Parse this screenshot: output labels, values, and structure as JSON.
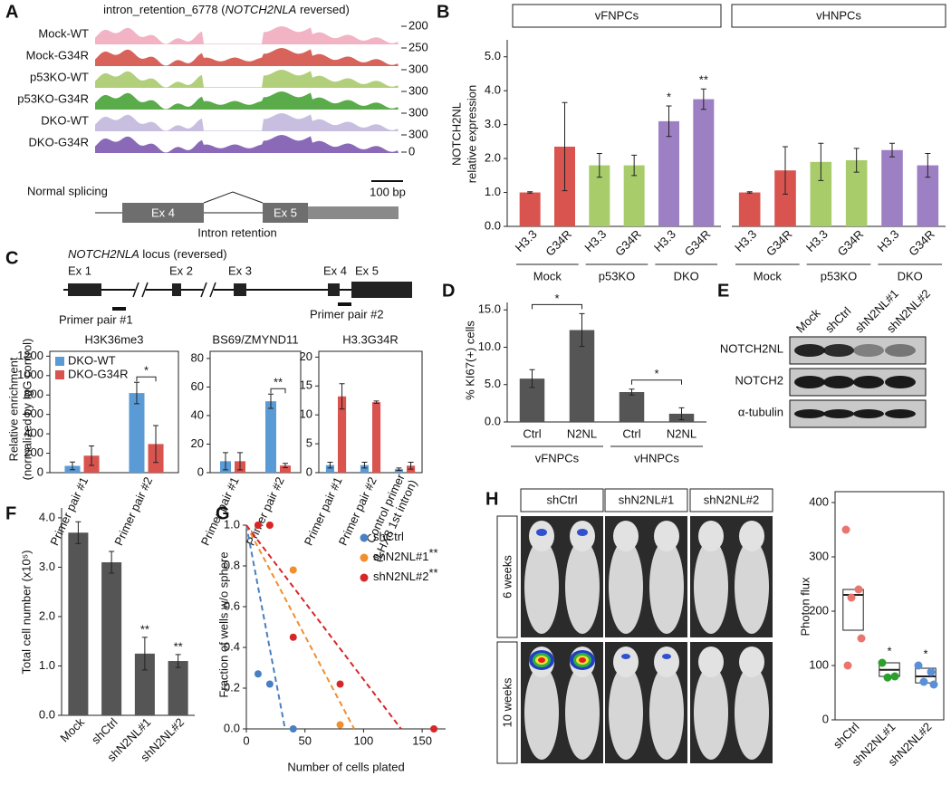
{
  "panel_labels": [
    "A",
    "B",
    "C",
    "D",
    "E",
    "F",
    "G",
    "H"
  ],
  "panel_a": {
    "title": [
      "intron_retention_6778 (",
      "NOTCH2NLA",
      " reversed)"
    ],
    "tracks": [
      "Mock-WT",
      "Mock-G34R",
      "p53KO-WT",
      "p53KO-G34R",
      "DKO-WT",
      "DKO-G34R"
    ],
    "track_colors": [
      "#f2b3c4",
      "#d8635b",
      "#b2cf7c",
      "#5aab4a",
      "#c8bfe0",
      "#8a69b8"
    ],
    "scales": [
      "200",
      "250",
      "300",
      "300",
      "300",
      "300",
      "0"
    ],
    "normal_splicing": "Normal splicing",
    "scale_bar": "100 bp",
    "exons": [
      "Ex 4",
      "Ex 5"
    ],
    "intron_retention": "Intron retention"
  },
  "panel_c_locus": {
    "title": [
      "NOTCH2NLA",
      " locus (reversed)"
    ],
    "exons": [
      "Ex 1",
      "Ex 2",
      "Ex 3",
      "Ex 4",
      "Ex 5"
    ],
    "primers": [
      "Primer pair #1",
      "Primer pair #2"
    ]
  },
  "panel_e": {
    "lanes": [
      "Mock",
      "shCtrl",
      "shN2NL#1",
      "shN2NL#2"
    ],
    "rows": [
      "NOTCH2NL",
      "NOTCH2",
      "α-tubulin"
    ]
  },
  "panel_h_images": {
    "columns": [
      "shCtrl",
      "shN2NL#1",
      "shN2NL#2"
    ],
    "rows": [
      "6 weeks",
      "10 weeks"
    ]
  },
  "chart_data": [
    {
      "type": "bar",
      "y_label": [
        "NOTCH2NL",
        "relative expression"
      ],
      "categories": [
        "H3.3",
        "G34R",
        "H3.3",
        "G34R",
        "H3.3",
        "G34R"
      ],
      "groups": [
        "Mock",
        "p53KO",
        "DKO"
      ],
      "colors": [
        "#d9544f",
        "#d9544f",
        "#a9cc6a",
        "#a9cc6a",
        "#9d80c3",
        "#9d80c3"
      ],
      "panels": [
        {
          "title": "vFNPCs",
          "values": [
            1.0,
            2.35,
            1.8,
            1.8,
            3.1,
            3.75
          ],
          "errors": [
            0.02,
            1.3,
            0.35,
            0.3,
            0.45,
            0.3
          ],
          "value_annotations": [
            null,
            null,
            null,
            null,
            "*",
            "**"
          ]
        },
        {
          "title": "vHNPCs",
          "values": [
            1.0,
            1.65,
            1.9,
            1.95,
            2.25,
            1.8
          ],
          "errors": [
            0.02,
            0.7,
            0.55,
            0.35,
            0.2,
            0.35
          ]
        }
      ],
      "ylim": [
        0,
        5.5
      ],
      "yticks": [
        {
          "value": 0,
          "label": "0.0"
        },
        {
          "value": 1,
          "label": "1.0"
        },
        {
          "value": 2,
          "label": "2.0"
        },
        {
          "value": 3,
          "label": "3.0"
        },
        {
          "value": 4,
          "label": "4.0"
        },
        {
          "value": 5,
          "label": "5.0"
        }
      ]
    },
    {
      "type": "bar",
      "title": "H3K36me3",
      "y_label": [
        "Relative enrichment",
        "(normalized by IgG control)"
      ],
      "categories": [
        "Primer pair #1",
        "Primer pair #2"
      ],
      "series": [
        {
          "name": "DKO-WT",
          "color": "#5b9bd5",
          "values": [
            70,
            820
          ],
          "errors": [
            40,
            110
          ]
        },
        {
          "name": "DKO-G34R",
          "color": "#d9544f",
          "values": [
            175,
            295
          ],
          "errors": [
            100,
            190
          ]
        }
      ],
      "ylim": [
        0,
        1250
      ],
      "yticks": [
        0,
        200,
        400,
        600,
        800,
        1000,
        1200
      ],
      "category_annotations": [
        null,
        "*"
      ]
    },
    {
      "type": "bar",
      "title": "BS69/ZMYND11",
      "categories": [
        "Primer pair #1",
        "Primer pair #2"
      ],
      "series": [
        {
          "color": "#5b9bd5",
          "values": [
            8,
            50
          ],
          "errors": [
            6,
            5
          ]
        },
        {
          "color": "#d9544f",
          "values": [
            8,
            5
          ],
          "errors": [
            6,
            1.5
          ]
        }
      ],
      "ylim": [
        0,
        85
      ],
      "yticks": [
        0,
        20,
        40,
        60,
        80
      ],
      "category_annotations": [
        null,
        "**"
      ]
    },
    {
      "type": "bar",
      "title": "H3.3G34R",
      "categories": [
        "Primer pair #1",
        "Primer pair #2",
        [
          "Control primer",
          "(LHX8 1st intron)"
        ]
      ],
      "series": [
        {
          "color": "#5b9bd5",
          "values": [
            1.3,
            1.3,
            0.6
          ],
          "errors": [
            0.5,
            0.5,
            0.2
          ]
        },
        {
          "color": "#d9544f",
          "values": [
            13.2,
            12.2,
            1.2
          ],
          "errors": [
            2.2,
            0.2,
            0.6
          ]
        }
      ],
      "ylim": [
        0,
        21
      ],
      "yticks": [
        0,
        5,
        10,
        15,
        20
      ]
    },
    {
      "type": "bar",
      "y_label": "% KI67(+) cells",
      "categories": [
        "Ctrl",
        "N2NL",
        "Ctrl",
        "N2NL"
      ],
      "groups": [
        "vFNPCs",
        "vHNPCs"
      ],
      "values": [
        5.8,
        12.3,
        4.0,
        1.1
      ],
      "errors": [
        1.2,
        2.2,
        0.4,
        0.8
      ],
      "color": "#555555",
      "group_annotations": [
        "*",
        "*"
      ],
      "ylim": [
        0,
        16
      ],
      "yticks": [
        {
          "value": 0,
          "label": "0.0"
        },
        {
          "value": 5,
          "label": "5.0"
        },
        {
          "value": 10,
          "label": "10.0"
        },
        {
          "value": 15,
          "label": "15.0"
        }
      ]
    },
    {
      "type": "bar",
      "y_label": "Total cell number (x10⁵)",
      "categories": [
        "Mock",
        "shCtrl",
        "shN2NL#1",
        "shN2NL#2"
      ],
      "values": [
        3.7,
        3.1,
        1.25,
        1.1
      ],
      "errors": [
        0.22,
        0.22,
        0.33,
        0.13
      ],
      "value_annotations": [
        null,
        null,
        "**",
        "**"
      ],
      "color": "#555555",
      "ylim": [
        0,
        4.2
      ],
      "yticks": [
        {
          "value": 0,
          "label": "0.0"
        },
        {
          "value": 1,
          "label": "1.0"
        },
        {
          "value": 2,
          "label": "2.0"
        },
        {
          "value": 3,
          "label": "3.0"
        },
        {
          "value": 4,
          "label": "4.0"
        }
      ]
    },
    {
      "type": "scatter",
      "x_label": "Number of cells plated",
      "y_label": "Fraction of wells w/o sphere",
      "xlim": [
        0,
        170
      ],
      "xticks": [
        0,
        50,
        100,
        150
      ],
      "ylim": [
        0,
        1.0
      ],
      "yticks": [
        {
          "value": 0,
          "label": "0.0"
        },
        0.2,
        0.4,
        0.6,
        0.8,
        {
          "value": 1,
          "label": "1.0"
        }
      ],
      "series": [
        {
          "name": "shCtrl",
          "color": "#4a7fc1",
          "x": [
            10,
            20,
            40
          ],
          "y": [
            0.27,
            0.22,
            0
          ],
          "fit": {
            "x": [
              0,
              33
            ],
            "y": [
              1,
              0
            ]
          }
        },
        {
          "name": "shN2NL#1",
          "color": "#f28e2b",
          "x": [
            10,
            20,
            40,
            80
          ],
          "y": [
            1,
            1,
            0.78,
            0.02
          ],
          "fit": {
            "x": [
              0,
              92
            ],
            "y": [
              1,
              0
            ]
          },
          "legend_annotation": "**"
        },
        {
          "name": "shN2NL#2",
          "color": "#d62728",
          "x": [
            10,
            20,
            40,
            80,
            160
          ],
          "y": [
            1,
            1,
            0.45,
            0.22,
            0
          ],
          "fit": {
            "x": [
              0,
              132
            ],
            "y": [
              1,
              0
            ]
          },
          "legend_annotation": "**"
        }
      ]
    },
    {
      "type": "box",
      "y_label": "Photon flux",
      "categories": [
        "shCtrl",
        "shN2NL#1",
        "shN2NL#2"
      ],
      "colors": [
        "#e8766e",
        "#2ca02c",
        "#5b8fd6"
      ],
      "points": [
        [
          350,
          240,
          225,
          150,
          100
        ],
        [
          105,
          80,
          78
        ],
        [
          100,
          88,
          70,
          65
        ]
      ],
      "boxes": [
        {
          "q1": 165,
          "median": 230,
          "q3": 240
        },
        {
          "q1": 80,
          "median": 92,
          "q3": 105
        },
        {
          "q1": 68,
          "median": 80,
          "q3": 95
        }
      ],
      "value_annotations": [
        null,
        "*",
        "*"
      ],
      "ylim": [
        0,
        420
      ],
      "yticks": [
        0,
        100,
        200,
        300,
        400
      ]
    }
  ]
}
